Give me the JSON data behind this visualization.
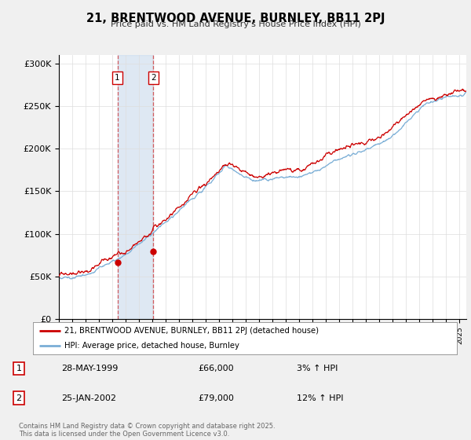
{
  "title": "21, BRENTWOOD AVENUE, BURNLEY, BB11 2PJ",
  "subtitle": "Price paid vs. HM Land Registry's House Price Index (HPI)",
  "ytick_labels": [
    "£0",
    "£50K",
    "£100K",
    "£150K",
    "£200K",
    "£250K",
    "£300K"
  ],
  "yticks": [
    0,
    50000,
    100000,
    150000,
    200000,
    250000,
    300000
  ],
  "ylim": [
    0,
    310000
  ],
  "xlim_min": 1995,
  "xlim_max": 2025.5,
  "line1_color": "#cc0000",
  "line2_color": "#7aaed6",
  "shade_color": "#c8d9ec",
  "bg_color": "#f0f0f0",
  "plot_bg": "#ffffff",
  "legend1_label": "21, BRENTWOOD AVENUE, BURNLEY, BB11 2PJ (detached house)",
  "legend2_label": "HPI: Average price, detached house, Burnley",
  "purchase1_x": 1999.38,
  "purchase1_y": 66000,
  "purchase2_x": 2002.07,
  "purchase2_y": 79000,
  "t1_date": "28-MAY-1999",
  "t1_price": "£66,000",
  "t1_hpi": "3% ↑ HPI",
  "t2_date": "25-JAN-2002",
  "t2_price": "£79,000",
  "t2_hpi": "12% ↑ HPI",
  "footer": "Contains HM Land Registry data © Crown copyright and database right 2025.\nThis data is licensed under the Open Government Licence v3.0."
}
